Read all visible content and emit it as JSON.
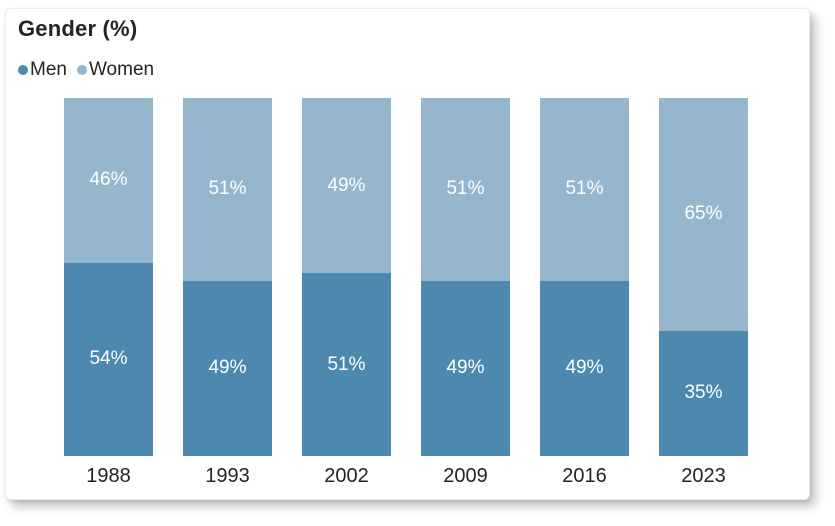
{
  "chart": {
    "title": "Gender (%)"
  },
  "colors": {
    "men": "#4d89ae",
    "women": "#95b6cd",
    "text": "#252423",
    "bar_label": "#ffffff",
    "card_background": "#ffffff"
  },
  "chart_data": {
    "type": "bar",
    "stacked": true,
    "title": "Gender (%)",
    "categories": [
      "1988",
      "1993",
      "2002",
      "2009",
      "2016",
      "2023"
    ],
    "series": [
      {
        "name": "Men",
        "color": "#4d89ae",
        "values": [
          54,
          49,
          51,
          49,
          49,
          35
        ]
      },
      {
        "name": "Women",
        "color": "#95b6cd",
        "values": [
          46,
          51,
          49,
          51,
          51,
          65
        ]
      }
    ],
    "value_suffix": "%",
    "xlabel": "",
    "ylabel": "",
    "ylim": [
      0,
      100
    ],
    "grid": false,
    "legend_position": "top-left",
    "data_labels": "inside-center"
  }
}
